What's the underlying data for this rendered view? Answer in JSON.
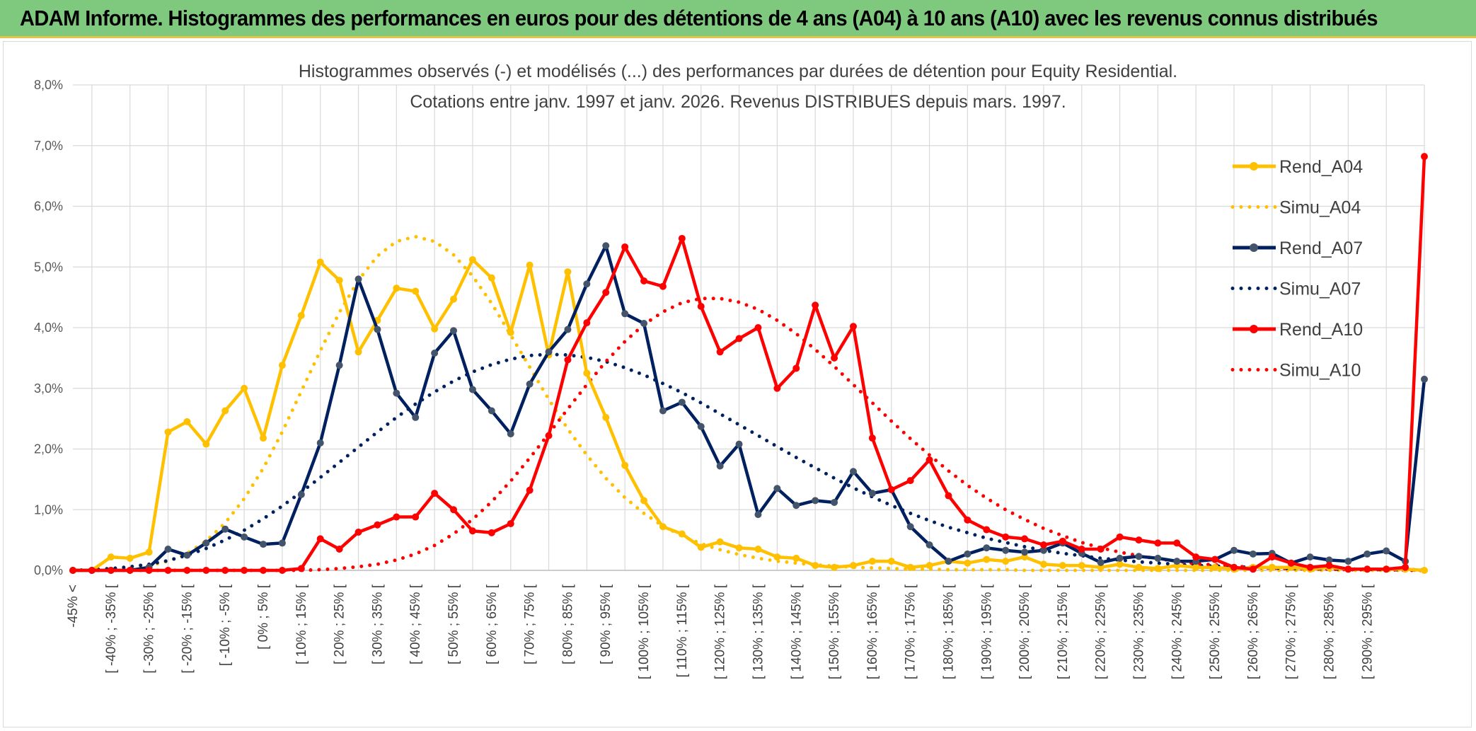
{
  "banner": {
    "title": "ADAM Informe. Histogrammes des performances en euros pour des détentions de 4 ans (A04) à 10 ans (A10) avec les revenus connus distribués",
    "background": "#7fc97f"
  },
  "chart_data": {
    "type": "line",
    "title": "Histogrammes observés (-) et modélisés (...) des performances par durées de détention pour Equity Residential.",
    "subtitle": "Cotations entre janv. 1997 et janv. 2026. Revenus DISTRIBUES depuis mars. 1997.",
    "ylim": [
      0,
      8
    ],
    "y_ticks": [
      "0,0%",
      "1,0%",
      "2,0%",
      "3,0%",
      "4,0%",
      "5,0%",
      "6,0%",
      "7,0%",
      "8,0%"
    ],
    "grid": true,
    "legend_position": "right",
    "x_tick_labels": [
      "-45% <",
      "[ -40% ; -35% [",
      "[ -30% ; -25% [",
      "[ -20% ; -15% [",
      "[ -10% ; -5% [",
      "[ 0% ; 5% [",
      "[ 10% ; 15% [",
      "[ 20% ; 25% [",
      "[ 30% ; 35% [",
      "[ 40% ; 45% [",
      "[ 50% ; 55% [",
      "[ 60% ; 65% [",
      "[ 70% ; 75% [",
      "[ 80% ; 85% [",
      "[ 90% ; 95% [",
      "[ 100% ; 105% [",
      "[ 110% ; 115% [",
      "[ 120% ; 125% [",
      "[ 130% ; 135% [",
      "[ 140% ; 145% [",
      "[ 150% ; 155% [",
      "[ 160% ; 165% [",
      "[ 170% ; 175% [",
      "[ 180% ; 185% [",
      "[ 190% ; 195% [",
      "[ 200% ; 205% [",
      "[ 210% ; 215% [",
      "[ 220% ; 225% [",
      "[ 230% ; 235% [",
      "[ 240% ; 245% [",
      "[ 250% ; 255% [",
      "[ 260% ; 265% [",
      "[ 270% ; 275% [",
      "[ 280% ; 285% [",
      "[ 290% ; 295% ["
    ],
    "series": [
      {
        "name": "Rend_A04",
        "color": "#ffc000",
        "style": "solid",
        "markers": true,
        "values": [
          0,
          0,
          0.22,
          0.2,
          0.3,
          2.28,
          2.45,
          2.08,
          2.63,
          3.0,
          2.18,
          3.38,
          4.2,
          5.08,
          4.78,
          3.6,
          4.12,
          4.65,
          4.6,
          3.98,
          4.47,
          5.12,
          4.82,
          3.92,
          5.03,
          3.55,
          4.92,
          3.25,
          2.52,
          1.73,
          1.15,
          0.72,
          0.6,
          0.38,
          0.47,
          0.37,
          0.35,
          0.22,
          0.2,
          0.08,
          0.05,
          0.08,
          0.15,
          0.15,
          0.05,
          0.08,
          0.15,
          0.12,
          0.18,
          0.15,
          0.22,
          0.1,
          0.08,
          0.08,
          0.05,
          0.1,
          0.05,
          0.03,
          0.08,
          0.05,
          0.05,
          0.02,
          0.05,
          0.05,
          0.05,
          0.02,
          0.05,
          0.02,
          0.02,
          0.02,
          0.02,
          0
        ]
      },
      {
        "name": "Simu_A04",
        "color": "#ffc000",
        "style": "dotted",
        "markers": false,
        "values": [
          0,
          0.01,
          0.02,
          0.04,
          0.08,
          0.15,
          0.28,
          0.48,
          0.78,
          1.18,
          1.68,
          2.28,
          2.95,
          3.62,
          4.25,
          4.78,
          5.18,
          5.42,
          5.5,
          5.42,
          5.2,
          4.85,
          4.4,
          3.88,
          3.35,
          2.82,
          2.33,
          1.9,
          1.52,
          1.2,
          0.94,
          0.73,
          0.57,
          0.44,
          0.34,
          0.26,
          0.2,
          0.15,
          0.12,
          0.09,
          0.07,
          0.05,
          0.04,
          0.03,
          0.02,
          0.02,
          0.01,
          0.01,
          0.01,
          0.01,
          0,
          0,
          0,
          0,
          0,
          0,
          0,
          0,
          0,
          0,
          0,
          0,
          0,
          0,
          0,
          0,
          0,
          0,
          0,
          0,
          0,
          0
        ]
      },
      {
        "name": "Rend_A07",
        "color": "#002060",
        "style": "solid",
        "markers": true,
        "values": [
          0,
          0,
          0,
          0,
          0.05,
          0.35,
          0.25,
          0.45,
          0.68,
          0.55,
          0.43,
          0.45,
          1.25,
          2.1,
          3.38,
          4.8,
          3.97,
          2.92,
          2.52,
          3.58,
          3.95,
          2.98,
          2.63,
          2.25,
          3.07,
          3.6,
          3.97,
          4.72,
          5.35,
          4.23,
          4.07,
          2.63,
          2.77,
          2.37,
          1.72,
          2.08,
          0.92,
          1.35,
          1.07,
          1.15,
          1.12,
          1.63,
          1.27,
          1.33,
          0.72,
          0.42,
          0.15,
          0.27,
          0.37,
          0.33,
          0.3,
          0.33,
          0.45,
          0.28,
          0.13,
          0.2,
          0.23,
          0.2,
          0.15,
          0.15,
          0.18,
          0.33,
          0.27,
          0.28,
          0.12,
          0.22,
          0.17,
          0.15,
          0.27,
          0.32,
          0.15,
          3.15
        ]
      },
      {
        "name": "Simu_A07",
        "color": "#002060",
        "style": "dotted",
        "markers": false,
        "values": [
          0,
          0.01,
          0.03,
          0.06,
          0.1,
          0.16,
          0.25,
          0.36,
          0.5,
          0.66,
          0.85,
          1.06,
          1.29,
          1.53,
          1.78,
          2.03,
          2.28,
          2.52,
          2.74,
          2.94,
          3.12,
          3.27,
          3.39,
          3.48,
          3.54,
          3.56,
          3.55,
          3.51,
          3.44,
          3.34,
          3.22,
          3.08,
          2.93,
          2.76,
          2.58,
          2.4,
          2.22,
          2.04,
          1.86,
          1.69,
          1.52,
          1.36,
          1.21,
          1.07,
          0.94,
          0.82,
          0.71,
          0.62,
          0.53,
          0.46,
          0.39,
          0.33,
          0.28,
          0.24,
          0.2,
          0.17,
          0.14,
          0.12,
          0.1,
          0.08,
          0.07,
          0.06,
          0.05,
          0.04,
          0.03,
          0.03,
          0.02,
          0.02,
          0.02,
          0.01,
          0.01,
          0.01
        ]
      },
      {
        "name": "Rend_A10",
        "color": "#ff0000",
        "style": "solid",
        "markers": true,
        "values": [
          0,
          0,
          0,
          0,
          0,
          0,
          0,
          0,
          0,
          0,
          0,
          0,
          0.03,
          0.52,
          0.35,
          0.63,
          0.75,
          0.88,
          0.88,
          1.27,
          1.0,
          0.65,
          0.62,
          0.77,
          1.32,
          2.22,
          3.47,
          4.08,
          4.58,
          5.33,
          4.77,
          4.68,
          5.47,
          4.35,
          3.6,
          3.82,
          4.0,
          3.0,
          3.33,
          4.37,
          3.5,
          4.02,
          2.18,
          1.33,
          1.48,
          1.82,
          1.23,
          0.83,
          0.67,
          0.55,
          0.52,
          0.42,
          0.48,
          0.35,
          0.35,
          0.55,
          0.5,
          0.45,
          0.45,
          0.22,
          0.18,
          0.05,
          0.02,
          0.22,
          0.12,
          0.05,
          0.08,
          0.02,
          0.02,
          0.02,
          0.05,
          6.82
        ]
      },
      {
        "name": "Simu_A10",
        "color": "#ff0000",
        "style": "dotted",
        "markers": false,
        "values": [
          0,
          0,
          0,
          0,
          0,
          0,
          0,
          0,
          0,
          0,
          0,
          0,
          0,
          0.01,
          0.03,
          0.06,
          0.1,
          0.17,
          0.27,
          0.41,
          0.6,
          0.84,
          1.13,
          1.47,
          1.85,
          2.25,
          2.66,
          3.06,
          3.44,
          3.77,
          4.05,
          4.26,
          4.41,
          4.48,
          4.48,
          4.42,
          4.3,
          4.12,
          3.9,
          3.64,
          3.36,
          3.06,
          2.76,
          2.46,
          2.17,
          1.9,
          1.64,
          1.4,
          1.19,
          1.0,
          0.84,
          0.69,
          0.57,
          0.46,
          0.37,
          0.3,
          0.24,
          0.19,
          0.15,
          0.11,
          0.09,
          0.07,
          0.05,
          0.04,
          0.03,
          0.02,
          0.02,
          0.01,
          0.01,
          0.01,
          0,
          0
        ]
      }
    ]
  }
}
